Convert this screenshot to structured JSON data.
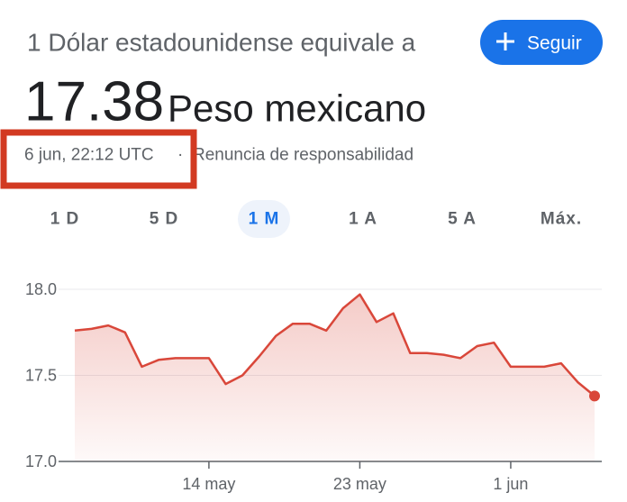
{
  "header": {
    "subtitle": "1 Dólar estadounidense equivale a",
    "rate": "17.38",
    "currency": "Peso mexicano",
    "timestamp": "6 jun, 22:12 UTC",
    "separator": "·",
    "disclaimer": "Renuncia de responsabilidad",
    "follow_button": "Seguir"
  },
  "tabs": {
    "items": [
      "1 D",
      "5 D",
      "1 M",
      "1 A",
      "5 A",
      "Máx."
    ],
    "selected": 2
  },
  "chart_data": {
    "type": "line",
    "categories": [
      null,
      null,
      null,
      null,
      null,
      null,
      null,
      null,
      "14 may",
      null,
      null,
      null,
      null,
      null,
      null,
      null,
      null,
      "23 may",
      null,
      null,
      null,
      null,
      null,
      null,
      null,
      null,
      "1 jun",
      null,
      null,
      null,
      null,
      null
    ],
    "values": [
      17.76,
      17.77,
      17.79,
      17.75,
      17.55,
      17.59,
      17.6,
      17.6,
      17.6,
      17.45,
      17.5,
      17.61,
      17.73,
      17.8,
      17.8,
      17.76,
      17.89,
      17.97,
      17.81,
      17.86,
      17.63,
      17.63,
      17.62,
      17.6,
      17.67,
      17.69,
      17.55,
      17.55,
      17.55,
      17.57,
      17.46,
      17.38
    ],
    "color": "#d9473a",
    "ylim": [
      17.0,
      18.1
    ],
    "yticks": [
      {
        "value": 17.0,
        "label": "17.0"
      },
      17.5,
      {
        "value": 18.0,
        "label": "18.0"
      }
    ],
    "grid": true
  }
}
